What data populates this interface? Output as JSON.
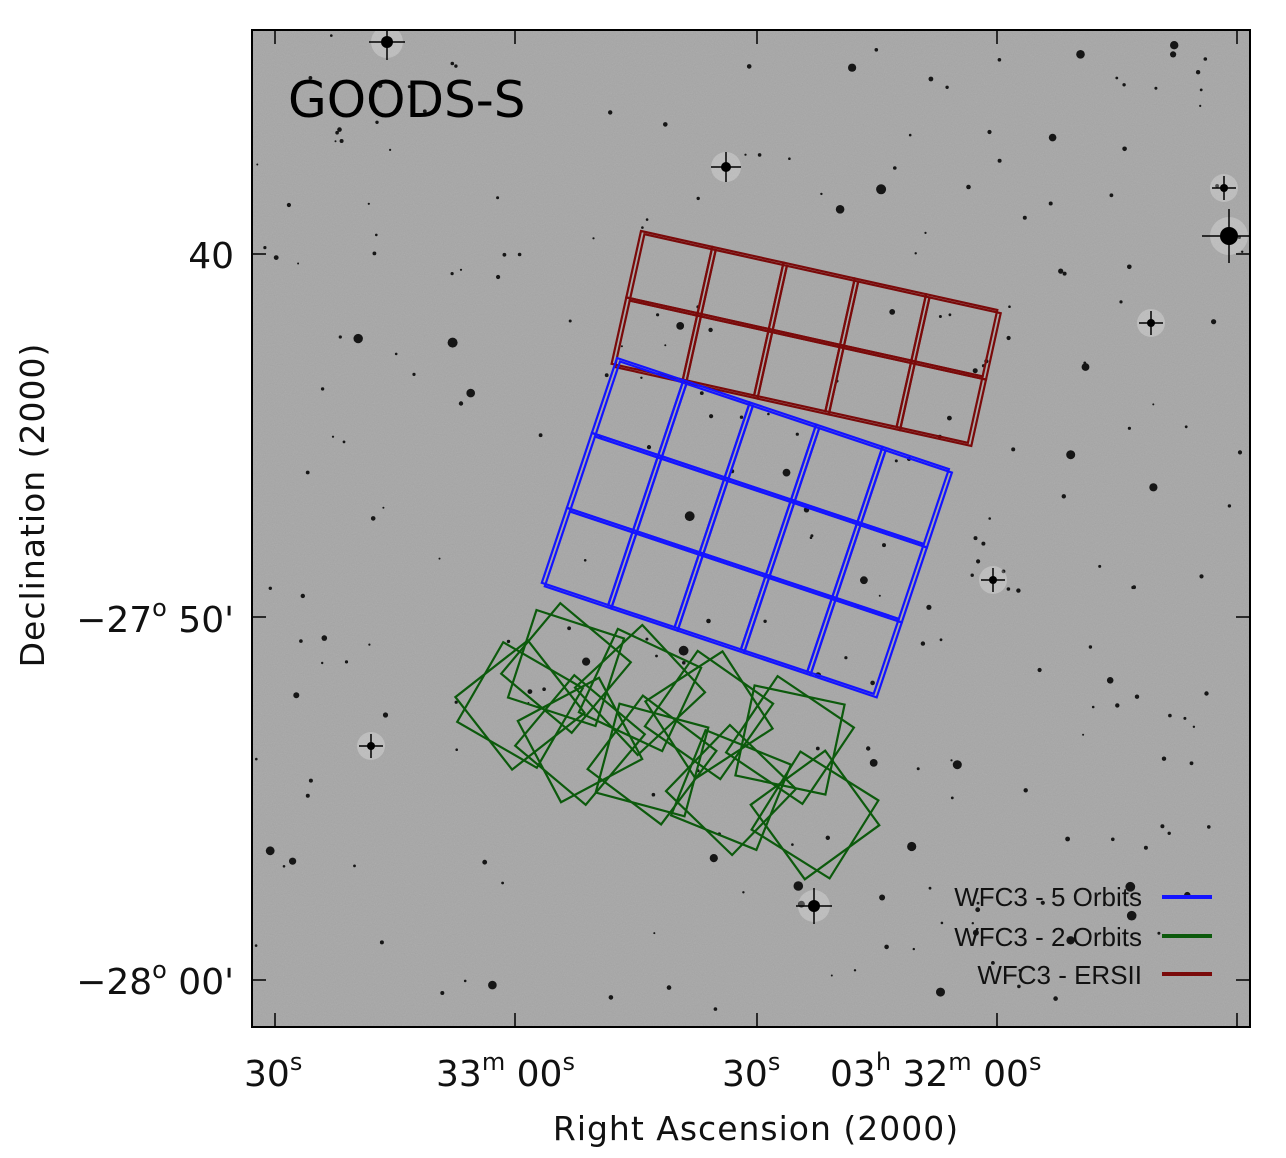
{
  "chart_data": {
    "type": "sky-map",
    "field_label": "GOODS-S",
    "xlabel": "Right Ascension (2000)",
    "ylabel": "Declination (2000)",
    "x_ticks": [
      {
        "main": "30",
        "sup": "s",
        "main2": "",
        "sup2": ""
      },
      {
        "main": "33",
        "sup": "m",
        "main2": " 00",
        "sup2": "s"
      },
      {
        "main": "30",
        "sup": "s",
        "main2": "",
        "sup2": ""
      },
      {
        "main": "03",
        "sup": "h",
        "main2": " 32",
        "sup2": "m",
        "main3": " 00",
        "sup3": "s"
      }
    ],
    "y_ticks": [
      {
        "main": "40",
        "sup": "",
        "main2": ""
      },
      {
        "main": "−27",
        "sup": "o",
        "main2": " 50'"
      },
      {
        "main": "−28",
        "sup": "o",
        "main2": " 00'"
      }
    ],
    "legend": [
      {
        "label": "WFC3 - 5 Orbits",
        "color": "#1414ff"
      },
      {
        "label": "WFC3 - 2 Orbits",
        "color": "#0c5a0c"
      },
      {
        "label": "WFC3 - ERSII",
        "color": "#7a0a0a"
      }
    ],
    "colors": {
      "background": "#a6a6a6",
      "blue": "#1414ff",
      "green": "#0c5a0c",
      "red": "#7a0a0a"
    }
  }
}
